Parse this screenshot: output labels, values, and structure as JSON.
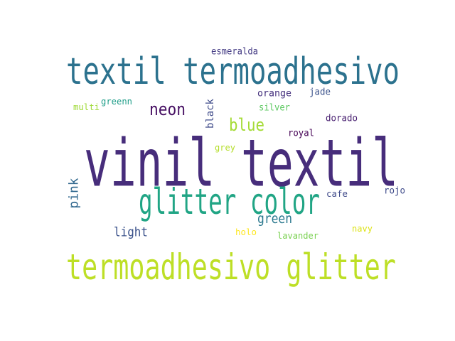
{
  "words": [
    {
      "text": "vinil textil",
      "color": "#472d7b"
    },
    {
      "text": "textil termoadhesivo",
      "color": "#2c728e"
    },
    {
      "text": "glitter color",
      "color": "#21a585"
    },
    {
      "text": "termoadhesivo glitter",
      "color": "#bddf26"
    },
    {
      "text": "neon",
      "color": "#471063"
    },
    {
      "text": "blue",
      "color": "#a5db36"
    },
    {
      "text": "green",
      "color": "#2a788e"
    },
    {
      "text": "light",
      "color": "#3b528b"
    },
    {
      "text": "pink",
      "color": "#31688e"
    },
    {
      "text": "black",
      "color": "#3e4a89"
    },
    {
      "text": "esmeralda",
      "color": "#443b84"
    },
    {
      "text": "orange",
      "color": "#46327e"
    },
    {
      "text": "jade",
      "color": "#3b528b"
    },
    {
      "text": "silver",
      "color": "#5ec962"
    },
    {
      "text": "multi",
      "color": "#a0da39"
    },
    {
      "text": "greenn",
      "color": "#1f9e89"
    },
    {
      "text": "dorado",
      "color": "#481f70"
    },
    {
      "text": "royal",
      "color": "#440154"
    },
    {
      "text": "grey",
      "color": "#b5de2b"
    },
    {
      "text": "cafe",
      "color": "#3e4989"
    },
    {
      "text": "rojo",
      "color": "#3e4a89"
    },
    {
      "text": "holo",
      "color": "#fde725"
    },
    {
      "text": "lavander",
      "color": "#7ad151"
    },
    {
      "text": "navy",
      "color": "#dde318"
    }
  ]
}
